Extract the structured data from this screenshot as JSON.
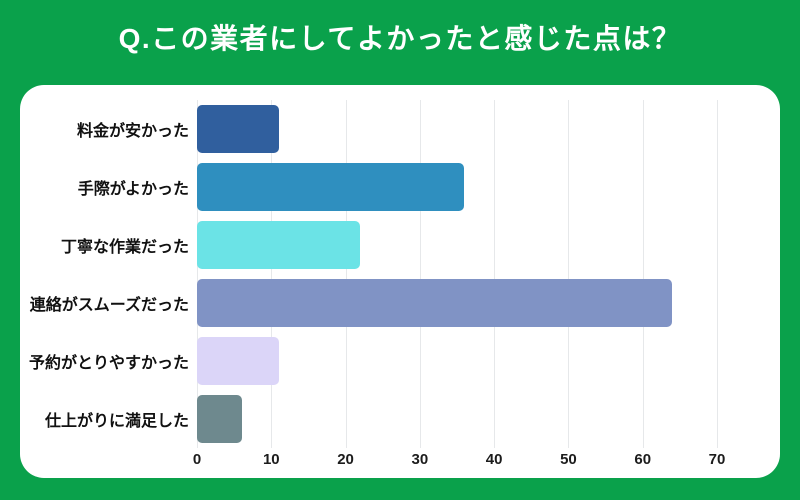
{
  "title": "Q.この業者にしてよかったと感じた点は？",
  "colors": {
    "background": "#0aa14b",
    "card": "#ffffff",
    "grid": "#e6e8ea",
    "title_text": "#ffffff",
    "label_text": "#111111",
    "tick_text": "#1c1c1c"
  },
  "chart_data": {
    "type": "bar",
    "orientation": "horizontal",
    "title": "Q.この業者にしてよかったと感じた点は？",
    "categories": [
      "料金が安かった",
      "手際がよかった",
      "丁寧な作業だった",
      "連絡がスムーズだった",
      "予約がとりやすかった",
      "仕上がりに満足した"
    ],
    "values": [
      11,
      36,
      22,
      64,
      11,
      6
    ],
    "bar_colors": [
      "#305f9e",
      "#2f8fbf",
      "#6be3e6",
      "#8093c5",
      "#dbd5f8",
      "#6e898e"
    ],
    "xlabel": "",
    "ylabel": "",
    "xticks": [
      0,
      10,
      20,
      30,
      40,
      50,
      60,
      70
    ],
    "xlim": [
      0,
      70
    ],
    "grid": true,
    "legend": false
  }
}
